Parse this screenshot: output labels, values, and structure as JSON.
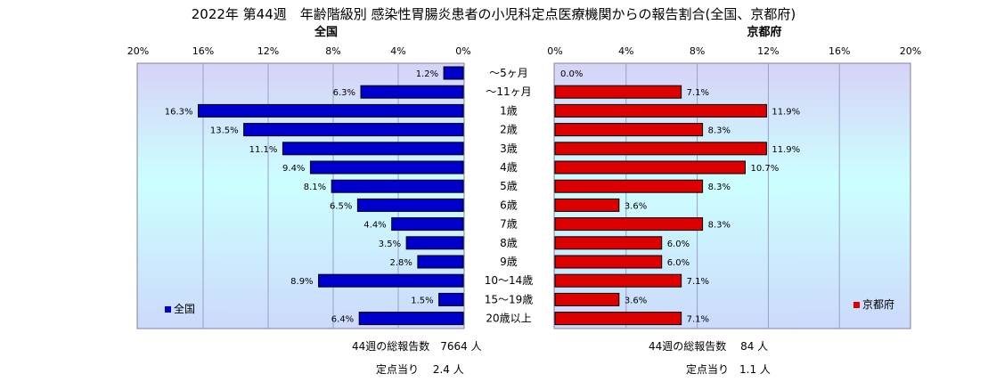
{
  "chart_data": {
    "type": "bar",
    "title": "2022年 第44週　年齢階級別 感染性胃腸炎患者の小児科定点医療機関からの報告割合(全国、京都府)",
    "categories": [
      "～5ヶ月",
      "～11ヶ月",
      "1歳",
      "2歳",
      "3歳",
      "4歳",
      "5歳",
      "6歳",
      "7歳",
      "8歳",
      "9歳",
      "10～14歳",
      "15～19歳",
      "20歳以上"
    ],
    "axis_ticks": [
      "0%",
      "4%",
      "8%",
      "12%",
      "16%",
      "20%"
    ],
    "xlim": [
      0,
      20
    ],
    "grid": true,
    "series": [
      {
        "name": "全国",
        "color": "#0000cc",
        "values": [
          1.2,
          6.3,
          16.3,
          13.5,
          11.1,
          9.4,
          8.1,
          6.5,
          4.4,
          3.5,
          2.8,
          8.9,
          1.5,
          6.4
        ],
        "labels": [
          "1.2%",
          "6.3%",
          "16.3%",
          "13.5%",
          "11.1%",
          "9.4%",
          "8.1%",
          "6.5%",
          "4.4%",
          "3.5%",
          "2.8%",
          "8.9%",
          "1.5%",
          "6.4%"
        ],
        "panel_title": "全国",
        "legend": "全国",
        "footer_total": "44週の総報告数　7664 人",
        "footer_per_site": "定点当り　 2.4 人"
      },
      {
        "name": "京都府",
        "color": "#dd0000",
        "values": [
          0.0,
          7.1,
          11.9,
          8.3,
          11.9,
          10.7,
          8.3,
          3.6,
          8.3,
          6.0,
          6.0,
          7.1,
          3.6,
          7.1
        ],
        "labels": [
          "0.0%",
          "7.1%",
          "11.9%",
          "8.3%",
          "11.9%",
          "10.7%",
          "8.3%",
          "3.6%",
          "8.3%",
          "6.0%",
          "6.0%",
          "7.1%",
          "3.6%",
          "7.1%"
        ],
        "panel_title": "京都府",
        "legend": "京都府",
        "footer_total": "44週の総報告数　 84 人",
        "footer_per_site": "定点当り　1.1 人"
      }
    ]
  }
}
